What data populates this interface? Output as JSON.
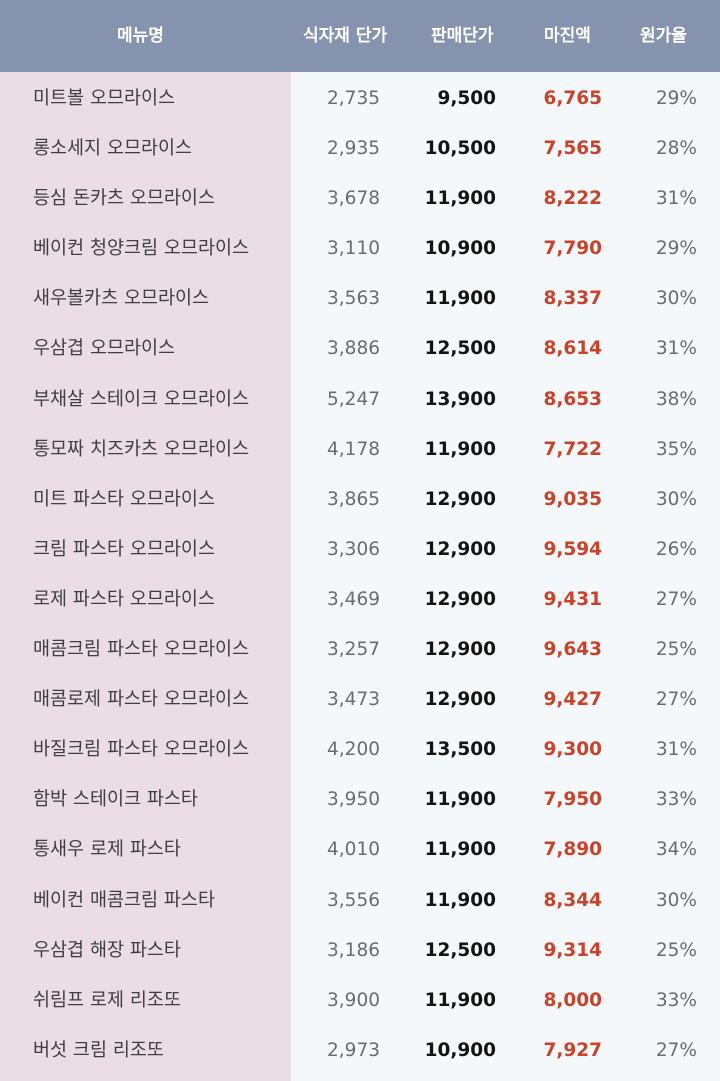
{
  "header": {
    "menu": "메뉴명",
    "ingredient_cost": "식자재 단가",
    "sale_price": "판매단가",
    "margin": "마진액",
    "cost_ratio": "원가율"
  },
  "rows": [
    {
      "name": "미트볼 오므라이스",
      "cost": "2,735",
      "price": "9,500",
      "margin": "6,765",
      "ratio": "29%"
    },
    {
      "name": "롱소세지 오므라이스",
      "cost": "2,935",
      "price": "10,500",
      "margin": "7,565",
      "ratio": "28%"
    },
    {
      "name": "등심 돈카츠 오므라이스",
      "cost": "3,678",
      "price": "11,900",
      "margin": "8,222",
      "ratio": "31%"
    },
    {
      "name": "베이컨 청양크림 오므라이스",
      "cost": "3,110",
      "price": "10,900",
      "margin": "7,790",
      "ratio": "29%"
    },
    {
      "name": "새우볼카츠 오므라이스",
      "cost": "3,563",
      "price": "11,900",
      "margin": "8,337",
      "ratio": "30%"
    },
    {
      "name": "우삼겹 오므라이스",
      "cost": "3,886",
      "price": "12,500",
      "margin": "8,614",
      "ratio": "31%"
    },
    {
      "name": "부채살 스테이크 오므라이스",
      "cost": "5,247",
      "price": "13,900",
      "margin": "8,653",
      "ratio": "38%"
    },
    {
      "name": "통모짜 치즈카츠 오므라이스",
      "cost": "4,178",
      "price": "11,900",
      "margin": "7,722",
      "ratio": "35%"
    },
    {
      "name": "미트 파스타 오므라이스",
      "cost": "3,865",
      "price": "12,900",
      "margin": "9,035",
      "ratio": "30%"
    },
    {
      "name": "크림 파스타 오므라이스",
      "cost": "3,306",
      "price": "12,900",
      "margin": "9,594",
      "ratio": "26%"
    },
    {
      "name": "로제 파스타 오므라이스",
      "cost": "3,469",
      "price": "12,900",
      "margin": "9,431",
      "ratio": "27%"
    },
    {
      "name": "매콤크림 파스타 오므라이스",
      "cost": "3,257",
      "price": "12,900",
      "margin": "9,643",
      "ratio": "25%"
    },
    {
      "name": "매콤로제 파스타 오므라이스",
      "cost": "3,473",
      "price": "12,900",
      "margin": "9,427",
      "ratio": "27%"
    },
    {
      "name": "바질크림 파스타 오므라이스",
      "cost": "4,200",
      "price": "13,500",
      "margin": "9,300",
      "ratio": "31%"
    },
    {
      "name": "함박 스테이크 파스타",
      "cost": "3,950",
      "price": "11,900",
      "margin": "7,950",
      "ratio": "33%"
    },
    {
      "name": "통새우 로제 파스타",
      "cost": "4,010",
      "price": "11,900",
      "margin": "7,890",
      "ratio": "34%"
    },
    {
      "name": "베이컨 매콤크림 파스타",
      "cost": "3,556",
      "price": "11,900",
      "margin": "8,344",
      "ratio": "30%"
    },
    {
      "name": "우삼겹 해장 파스타",
      "cost": "3,186",
      "price": "12,500",
      "margin": "9,314",
      "ratio": "25%"
    },
    {
      "name": "쉬림프 로제 리조또",
      "cost": "3,900",
      "price": "11,900",
      "margin": "8,000",
      "ratio": "33%"
    },
    {
      "name": "버섯 크림 리조또",
      "cost": "2,973",
      "price": "10,900",
      "margin": "7,927",
      "ratio": "27%"
    }
  ],
  "colors": {
    "header_bg": "#8593ae",
    "name_column_bg": "#ebdde5",
    "data_bg": "#f4f8fb",
    "margin_text": "#c9432b"
  }
}
